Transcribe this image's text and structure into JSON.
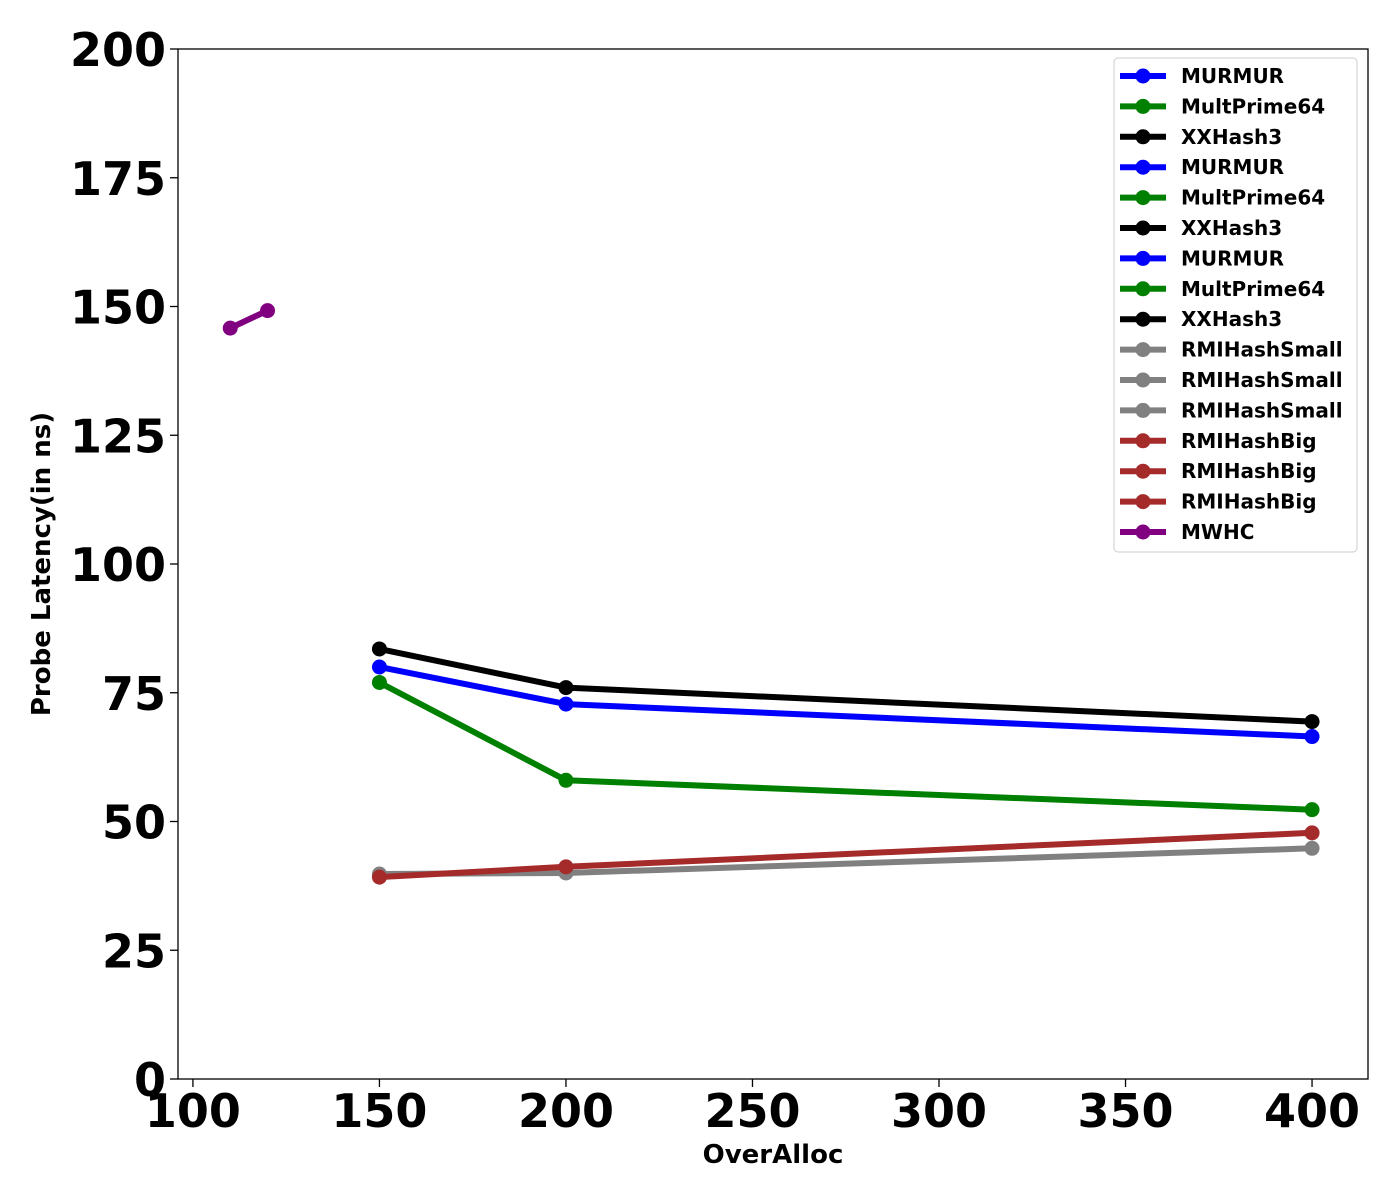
{
  "chart_data": {
    "type": "line",
    "xlabel": "OverAlloc",
    "ylabel": "Probe Latency(in ns)",
    "xlim": [
      96,
      415
    ],
    "ylim": [
      0,
      200
    ],
    "x_ticks": [
      100,
      150,
      200,
      250,
      300,
      350,
      400
    ],
    "y_ticks": [
      0,
      25,
      50,
      75,
      100,
      125,
      150,
      175,
      200
    ],
    "grid": false,
    "legend_position": "top-right",
    "series": [
      {
        "name": "MURMUR",
        "color": "#0000ff",
        "x": [
          150,
          200,
          400
        ],
        "y": [
          80.0,
          72.8,
          66.5
        ]
      },
      {
        "name": "MultPrime64",
        "color": "#008000",
        "x": [
          150,
          200,
          400
        ],
        "y": [
          77.0,
          58.0,
          52.3
        ]
      },
      {
        "name": "XXHash3",
        "color": "#000000",
        "x": [
          150,
          200,
          400
        ],
        "y": [
          83.5,
          76.0,
          69.4
        ]
      },
      {
        "name": "MURMUR",
        "color": "#0000ff",
        "x": [],
        "y": []
      },
      {
        "name": "MultPrime64",
        "color": "#008000",
        "x": [],
        "y": []
      },
      {
        "name": "XXHash3",
        "color": "#000000",
        "x": [],
        "y": []
      },
      {
        "name": "MURMUR",
        "color": "#0000ff",
        "x": [],
        "y": []
      },
      {
        "name": "MultPrime64",
        "color": "#008000",
        "x": [],
        "y": []
      },
      {
        "name": "XXHash3",
        "color": "#000000",
        "x": [],
        "y": []
      },
      {
        "name": "RMIHashSmall",
        "color": "#808080",
        "x": [
          150,
          200,
          400
        ],
        "y": [
          39.8,
          40.0,
          44.8
        ]
      },
      {
        "name": "RMIHashSmall",
        "color": "#808080",
        "x": [],
        "y": []
      },
      {
        "name": "RMIHashSmall",
        "color": "#808080",
        "x": [],
        "y": []
      },
      {
        "name": "RMIHashBig",
        "color": "#a52a2a",
        "x": [
          150,
          200,
          400
        ],
        "y": [
          39.2,
          41.2,
          47.8
        ]
      },
      {
        "name": "RMIHashBig",
        "color": "#a52a2a",
        "x": [],
        "y": []
      },
      {
        "name": "RMIHashBig",
        "color": "#a52a2a",
        "x": [],
        "y": []
      },
      {
        "name": "MWHC",
        "color": "#800080",
        "x": [
          110,
          120
        ],
        "y": [
          145.8,
          149.2
        ]
      }
    ]
  }
}
